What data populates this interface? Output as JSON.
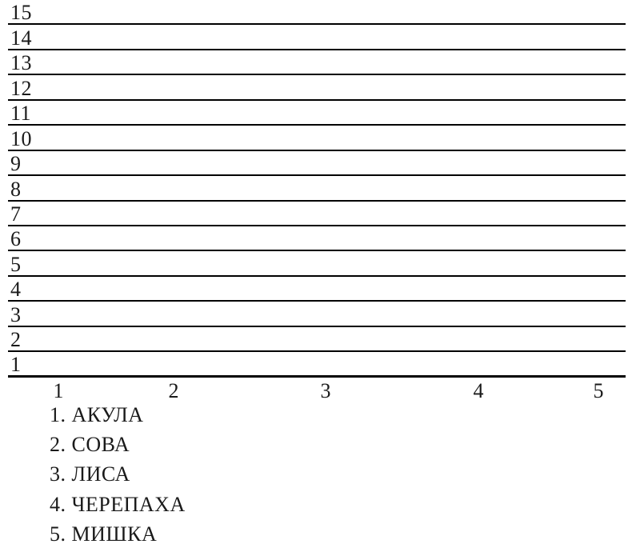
{
  "colors": {
    "background": "#ffffff",
    "line": "#000000",
    "text": "#1a1a1a"
  },
  "chart_data": {
    "type": "bar",
    "title": "",
    "xlabel": "",
    "ylabel": "",
    "categories": [
      "АКУЛА",
      "СОВА",
      "ЛИСА",
      "ЧЕРЕПАХА",
      "МИШКА"
    ],
    "series": [],
    "plotted_values": "none — blank grid, no data drawn",
    "x_ticks": [
      "1",
      "2",
      "3",
      "4",
      "5"
    ],
    "y_ticks": [
      "15",
      "14",
      "13",
      "12",
      "11",
      "10",
      "9",
      "8",
      "7",
      "6",
      "5",
      "4",
      "3",
      "2",
      "1"
    ],
    "ylim": [
      1,
      15
    ],
    "xlim": [
      1,
      5
    ],
    "grid": "horizontal ruled lines, one per y value",
    "legend_position": "below chart, bottom-left"
  },
  "legend": {
    "items": [
      "1. АКУЛА",
      "2. СОВА",
      "3. ЛИСА",
      "4. ЧЕРЕПАХА",
      "5. МИШКА"
    ]
  }
}
